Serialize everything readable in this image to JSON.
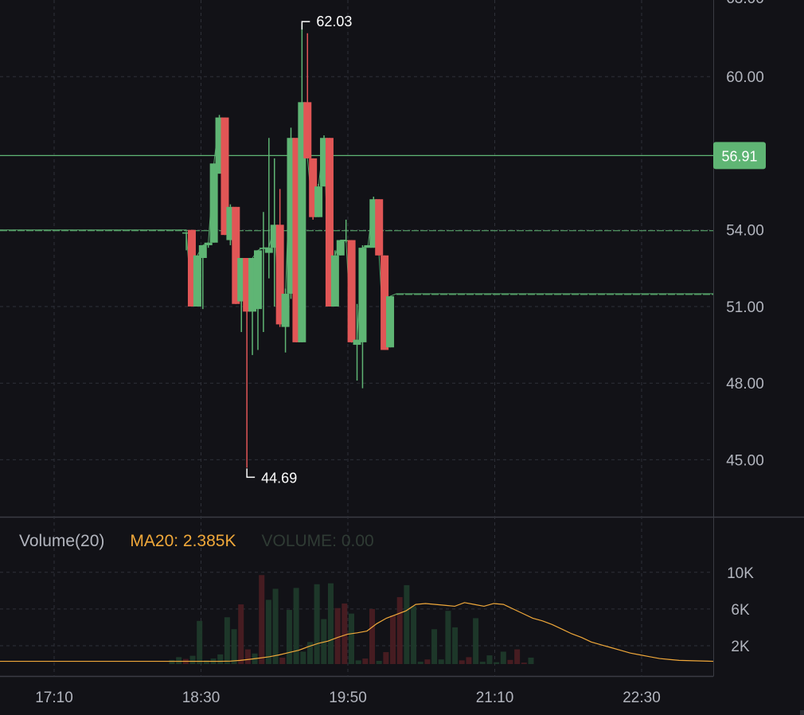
{
  "chart_data": {
    "type": "candlestick",
    "x_ticks": [
      "17:10",
      "18:30",
      "19:50",
      "21:10",
      "22:30"
    ],
    "price_axis": {
      "ticks": [
        "45.00",
        "48.00",
        "51.00",
        "54.00",
        "60.00"
      ],
      "ylim": [
        42.8,
        63.0
      ]
    },
    "last_price": "56.91",
    "high_marker": "62.03",
    "low_marker": "44.69",
    "colors": {
      "up": "#5fb574",
      "down": "#e15656",
      "ma": "#f0a83a",
      "grid": "#2e3038"
    },
    "candles": [
      {
        "t": "18:22",
        "o": 53.9,
        "h": 53.9,
        "l": 53.2,
        "c": 53.9
      },
      {
        "t": "18:25",
        "o": 54.0,
        "h": 54.0,
        "l": 51.0,
        "c": 51.0
      },
      {
        "t": "18:28",
        "o": 51.0,
        "h": 53.0,
        "l": 51.0,
        "c": 53.0
      },
      {
        "t": "18:31",
        "o": 52.9,
        "h": 53.4,
        "l": 50.9,
        "c": 53.4
      },
      {
        "t": "18:34",
        "o": 53.4,
        "h": 53.5,
        "l": 53.3,
        "c": 53.5
      },
      {
        "t": "18:37",
        "o": 53.5,
        "h": 56.6,
        "l": 53.5,
        "c": 56.6
      },
      {
        "t": "18:40",
        "o": 56.2,
        "h": 58.5,
        "l": 56.2,
        "c": 58.4
      },
      {
        "t": "18:43",
        "o": 58.4,
        "h": 58.4,
        "l": 53.8,
        "c": 53.8
      },
      {
        "t": "18:46",
        "o": 53.6,
        "h": 55.0,
        "l": 53.4,
        "c": 54.9
      },
      {
        "t": "18:49",
        "o": 54.9,
        "h": 54.9,
        "l": 51.1,
        "c": 51.1
      },
      {
        "t": "18:52",
        "o": 51.2,
        "h": 52.9,
        "l": 50.0,
        "c": 52.9
      },
      {
        "t": "18:55",
        "o": 52.9,
        "h": 52.9,
        "l": 44.69,
        "c": 50.8
      },
      {
        "t": "18:58",
        "o": 50.8,
        "h": 52.9,
        "l": 49.1,
        "c": 52.9
      },
      {
        "t": "19:01",
        "o": 50.9,
        "h": 53.2,
        "l": 49.3,
        "c": 53.2
      },
      {
        "t": "19:04",
        "o": 53.3,
        "h": 54.7,
        "l": 50.0,
        "c": 53.3
      },
      {
        "t": "19:07",
        "o": 53.1,
        "h": 57.6,
        "l": 52.1,
        "c": 53.3
      },
      {
        "t": "19:10",
        "o": 53.3,
        "h": 56.8,
        "l": 51.0,
        "c": 54.2
      },
      {
        "t": "19:13",
        "o": 54.2,
        "h": 55.6,
        "l": 50.2,
        "c": 50.3
      },
      {
        "t": "19:16",
        "o": 50.2,
        "h": 51.7,
        "l": 49.2,
        "c": 51.5
      },
      {
        "t": "19:19",
        "o": 51.5,
        "h": 58.0,
        "l": 51.3,
        "c": 57.6
      },
      {
        "t": "19:22",
        "o": 57.6,
        "h": 57.6,
        "l": 49.6,
        "c": 49.6
      },
      {
        "t": "19:25",
        "o": 49.6,
        "h": 62.03,
        "l": 49.6,
        "c": 59.0
      },
      {
        "t": "19:28",
        "o": 59.0,
        "h": 61.7,
        "l": 56.8,
        "c": 56.8
      },
      {
        "t": "19:31",
        "o": 56.8,
        "h": 56.8,
        "l": 54.4,
        "c": 54.5
      },
      {
        "t": "19:34",
        "o": 54.5,
        "h": 55.8,
        "l": 54.5,
        "c": 55.7
      },
      {
        "t": "19:37",
        "o": 55.7,
        "h": 57.7,
        "l": 55.7,
        "c": 57.6
      },
      {
        "t": "19:40",
        "o": 57.6,
        "h": 57.6,
        "l": 51.0,
        "c": 51.0
      },
      {
        "t": "19:43",
        "o": 51.0,
        "h": 53.2,
        "l": 51.0,
        "c": 53.0
      },
      {
        "t": "19:46",
        "o": 53.0,
        "h": 53.6,
        "l": 53.0,
        "c": 53.6
      },
      {
        "t": "19:49",
        "o": 53.6,
        "h": 54.4,
        "l": 53.5,
        "c": 53.6
      },
      {
        "t": "19:52",
        "o": 53.6,
        "h": 53.6,
        "l": 49.6,
        "c": 49.6
      },
      {
        "t": "19:55",
        "o": 49.5,
        "h": 51.1,
        "l": 48.1,
        "c": 49.7
      },
      {
        "t": "19:58",
        "o": 49.6,
        "h": 53.4,
        "l": 47.8,
        "c": 53.3
      },
      {
        "t": "20:01",
        "o": 53.3,
        "h": 53.4,
        "l": 53.3,
        "c": 53.4
      },
      {
        "t": "20:04",
        "o": 53.3,
        "h": 55.3,
        "l": 53.3,
        "c": 55.2
      },
      {
        "t": "20:07",
        "o": 55.2,
        "h": 55.2,
        "l": 53.0,
        "c": 53.0
      },
      {
        "t": "20:10",
        "o": 53.0,
        "h": 53.0,
        "l": 49.3,
        "c": 49.3
      },
      {
        "t": "20:13",
        "o": 49.4,
        "h": 51.4,
        "l": 49.4,
        "c": 51.4
      }
    ],
    "flat_before": 54.0,
    "flat_after": 51.5,
    "volume": {
      "title": "Volume(20)",
      "ma_label": "MA20: 2.385K",
      "value_label": "VOLUME: 0.00",
      "ticks": [
        "2K",
        "6K",
        "10K"
      ],
      "ylim": [
        0,
        12500
      ],
      "bars": [
        450,
        750,
        550,
        900,
        4700,
        400,
        600,
        1050,
        5100,
        3800,
        6500,
        1600,
        1150,
        9700,
        7000,
        8200,
        700,
        5900,
        8300,
        1350,
        2400,
        8700,
        4900,
        8800,
        6100,
        6600,
        5500,
        400,
        600,
        6000,
        350,
        1300,
        5300,
        7300,
        8600,
        6300,
        250,
        500,
        3800,
        500,
        5800,
        4000,
        400,
        750,
        5000,
        250,
        950,
        200,
        1350,
        450,
        1600,
        150,
        700
      ],
      "ma": [
        300,
        300,
        300,
        300,
        300,
        300,
        320,
        400,
        520,
        650,
        800,
        1000,
        1250,
        1500,
        1900,
        2250,
        2500,
        2900,
        3250,
        3400,
        3600,
        4400,
        5000,
        5400,
        5800,
        6500,
        6600,
        6500,
        6400,
        6300,
        6700,
        6500,
        6300,
        6600,
        6500,
        6000,
        5500,
        5000,
        4700,
        4300,
        3800,
        3300,
        2900,
        2400,
        2100,
        1800,
        1500,
        1200,
        1000,
        800,
        600,
        500,
        400
      ],
      "ma_flat_before": 300,
      "ma_flat_after": 300
    }
  }
}
